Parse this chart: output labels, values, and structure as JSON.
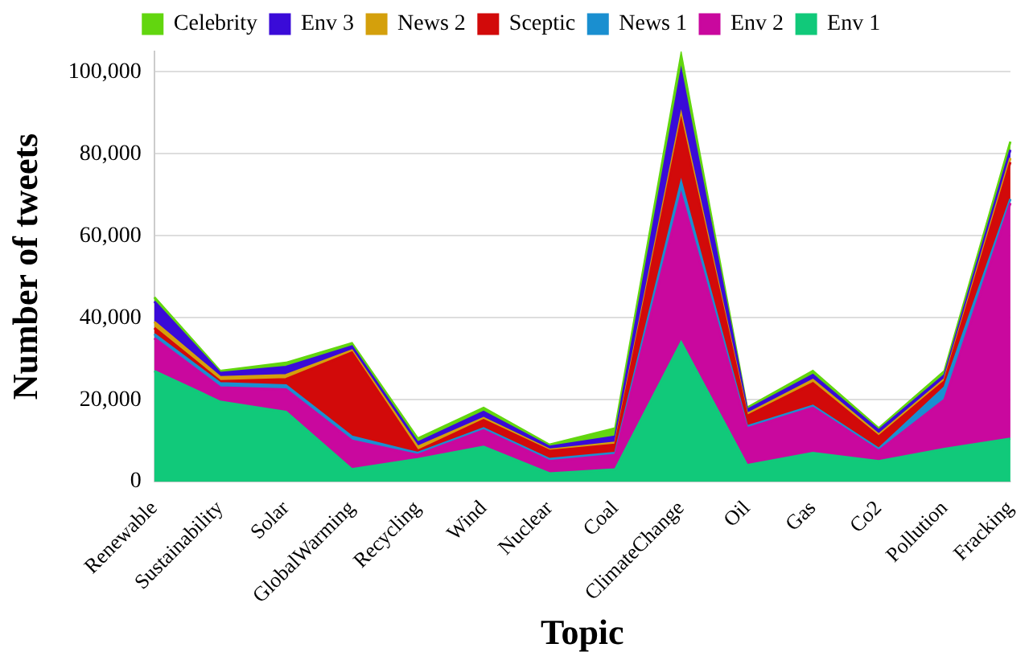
{
  "chart_data": {
    "type": "area",
    "stacked": true,
    "xlabel": "Topic",
    "ylabel": "Number of tweets",
    "categories": [
      "Renewable",
      "Sustainability",
      "Solar",
      "GlobalWarming",
      "Recycling",
      "Wind",
      "Nuclear",
      "Coal",
      "ClimateChange",
      "Oil",
      "Gas",
      "Co2",
      "Pollution",
      "Fracking"
    ],
    "series": [
      {
        "name": "Env 1",
        "color": "#11c97a",
        "values": [
          27000,
          19500,
          17000,
          3000,
          5500,
          8500,
          2000,
          3000,
          34000,
          4000,
          7000,
          5000,
          8000,
          10500
        ]
      },
      {
        "name": "Env 2",
        "color": "#c9089e",
        "values": [
          8000,
          3500,
          5500,
          7000,
          1000,
          4000,
          3000,
          3500,
          36000,
          9000,
          11000,
          2500,
          12000,
          57500
        ]
      },
      {
        "name": "News 1",
        "color": "#1a8fd0",
        "values": [
          1000,
          1000,
          1000,
          1000,
          500,
          500,
          500,
          500,
          3000,
          500,
          500,
          500,
          3000,
          1000
        ]
      },
      {
        "name": "Sceptic",
        "color": "#d20a0a",
        "values": [
          1500,
          500,
          1500,
          20500,
          500,
          2000,
          2000,
          2000,
          15000,
          2500,
          5500,
          3000,
          1500,
          9000
        ]
      },
      {
        "name": "News 2",
        "color": "#d4a00c",
        "values": [
          1500,
          1000,
          1000,
          500,
          1000,
          500,
          300,
          500,
          1500,
          500,
          800,
          500,
          500,
          1000
        ]
      },
      {
        "name": "Env 3",
        "color": "#3a0bd8",
        "values": [
          5000,
          1000,
          2000,
          1000,
          1000,
          1500,
          700,
          1500,
          10500,
          1000,
          1200,
          1000,
          1000,
          2000
        ]
      },
      {
        "name": "Celebrity",
        "color": "#62d60f",
        "values": [
          1000,
          500,
          1000,
          800,
          1000,
          1000,
          500,
          2000,
          4000,
          500,
          1000,
          500,
          1000,
          2000
        ]
      }
    ],
    "ylim": [
      0,
      105000
    ],
    "yticks": [
      0,
      {
        "value": 20000,
        "label": "20,000"
      },
      {
        "value": 40000,
        "label": "40,000"
      },
      {
        "value": 60000,
        "label": "60,000"
      },
      {
        "value": 80000,
        "label": "80,000"
      },
      {
        "value": 100000,
        "label": "100,000"
      }
    ],
    "grid": "y",
    "legend": "top"
  }
}
